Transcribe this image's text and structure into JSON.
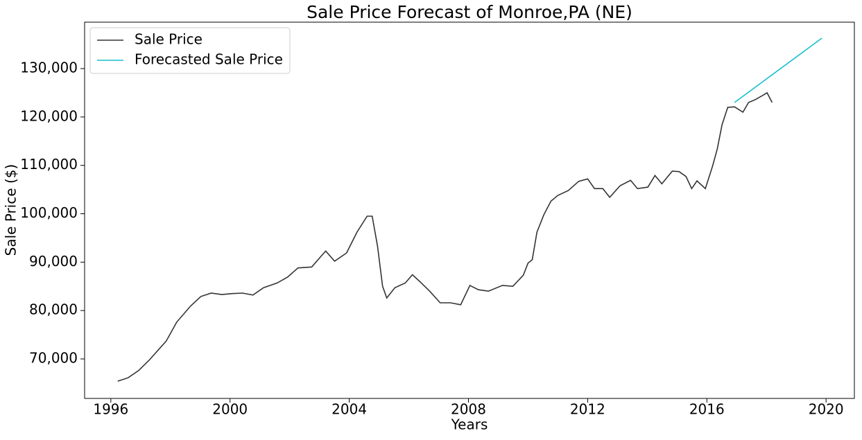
{
  "chart_data": {
    "type": "line",
    "title": "Sale Price Forecast of Monroe,PA (NE)",
    "x_label": "Years",
    "y_label": "Sale Price ($)",
    "xlim": [
      1995.12,
      2020.95
    ],
    "ylim": [
      61837,
      139595
    ],
    "xticks": [
      1996,
      2000,
      2004,
      2008,
      2012,
      2016,
      2020
    ],
    "yticks": [
      {
        "value": 70000,
        "label": "70,000"
      },
      {
        "value": 80000,
        "label": "80,000"
      },
      {
        "value": 90000,
        "label": "90,000"
      },
      {
        "value": 100000,
        "label": "100,000"
      },
      {
        "value": 110000,
        "label": "110,000"
      },
      {
        "value": 120000,
        "label": "120,000"
      },
      {
        "value": 130000,
        "label": "130,000"
      }
    ],
    "legend": "upper left",
    "series": [
      {
        "name": "Sale Price",
        "color": "#333333",
        "x": [
          1996.23,
          1996.58,
          1996.93,
          1997.28,
          1997.86,
          1998.21,
          1998.67,
          1999.02,
          1999.37,
          1999.72,
          2000.07,
          2000.42,
          2000.77,
          2001.12,
          2001.58,
          2001.93,
          2002.28,
          2002.74,
          2003.05,
          2003.21,
          2003.51,
          2003.91,
          2004.26,
          2004.6,
          2004.77,
          2004.95,
          2005.12,
          2005.26,
          2005.53,
          2005.88,
          2006.12,
          2006.35,
          2006.7,
          2007.05,
          2007.4,
          2007.74,
          2008.05,
          2008.33,
          2008.67,
          2009.14,
          2009.49,
          2009.84,
          2010.0,
          2010.14,
          2010.3,
          2010.53,
          2010.77,
          2011.0,
          2011.35,
          2011.7,
          2012.0,
          2012.23,
          2012.51,
          2012.74,
          2013.09,
          2013.44,
          2013.67,
          2014.02,
          2014.26,
          2014.49,
          2014.84,
          2015.07,
          2015.3,
          2015.49,
          2015.67,
          2015.95,
          2016.19,
          2016.35,
          2016.51,
          2016.7,
          2016.93,
          2017.21,
          2017.4,
          2017.63,
          2017.86,
          2018.02,
          2018.19
        ],
        "values": [
          65400,
          66100,
          67600,
          69700,
          73700,
          77600,
          80900,
          82900,
          83600,
          83300,
          83500,
          83600,
          83200,
          84700,
          85700,
          86900,
          88800,
          89000,
          91200,
          92300,
          90200,
          91900,
          96200,
          99500,
          99500,
          93300,
          85000,
          82600,
          84700,
          85700,
          87400,
          86100,
          84000,
          81600,
          81600,
          81200,
          85200,
          84300,
          84000,
          85200,
          85000,
          87300,
          89800,
          90500,
          96200,
          99800,
          102600,
          103800,
          104800,
          106700,
          107200,
          105200,
          105200,
          103400,
          105800,
          106900,
          105200,
          105500,
          107900,
          106200,
          108800,
          108700,
          107700,
          105200,
          106800,
          105200,
          109800,
          113400,
          118400,
          122000,
          122100,
          121000,
          123000,
          123600,
          124400,
          125000,
          123000
        ]
      },
      {
        "name": "Forecasted Sale Price",
        "color": "#17becf",
        "x": [
          2016.93,
          2019.86
        ],
        "values": [
          123000,
          136300
        ]
      }
    ]
  }
}
